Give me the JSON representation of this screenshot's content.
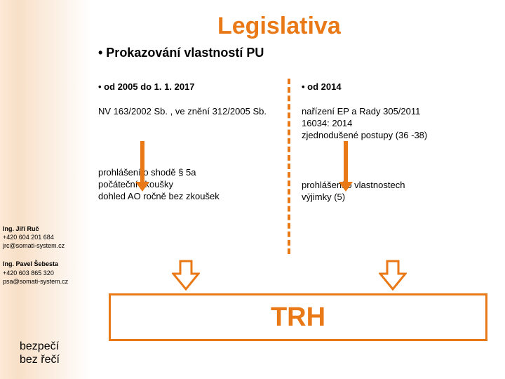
{
  "colors": {
    "orange": "#e97817",
    "text": "#000000",
    "bg": "#ffffff",
    "border_width": 3
  },
  "sidebar": {
    "contacts": [
      {
        "name": "Ing. Jiří Ruč",
        "phone": "+420 604 201 684",
        "email": "jrc@somati-system.cz"
      },
      {
        "name": "Ing. Pavel Šebesta",
        "phone": "+420 603 865 320",
        "email": "psa@somati-system.cz"
      }
    ],
    "tagline1": "bezpečí",
    "tagline2": "bez řečí"
  },
  "title": "Legislativa",
  "subtitle": "• Prokazování vlastností PU",
  "left": {
    "heading": "• od 2005 do 1. 1. 2017",
    "block1": "NV 163/2002 Sb. , ve znění 312/2005 Sb.",
    "block2": "prohlášení o shodě § 5a\npočáteční zkoušky\ndohled AO ročně bez zkoušek"
  },
  "right": {
    "heading": "• od 2014",
    "block1": "nařízení EP a Rady 305/2011\n16034: 2014\nzjednodušené postupy (36 -38)",
    "block2": "prohlášení o vlastnostech\nvýjimky (5)"
  },
  "trh": "TRH",
  "arrows": {
    "shaft_color": "#e97817",
    "shaft_width": 6,
    "shaft_height": 58,
    "head_size": 14
  },
  "block_arrow": {
    "border_color": "#e97817",
    "fill": "#ffffff"
  }
}
